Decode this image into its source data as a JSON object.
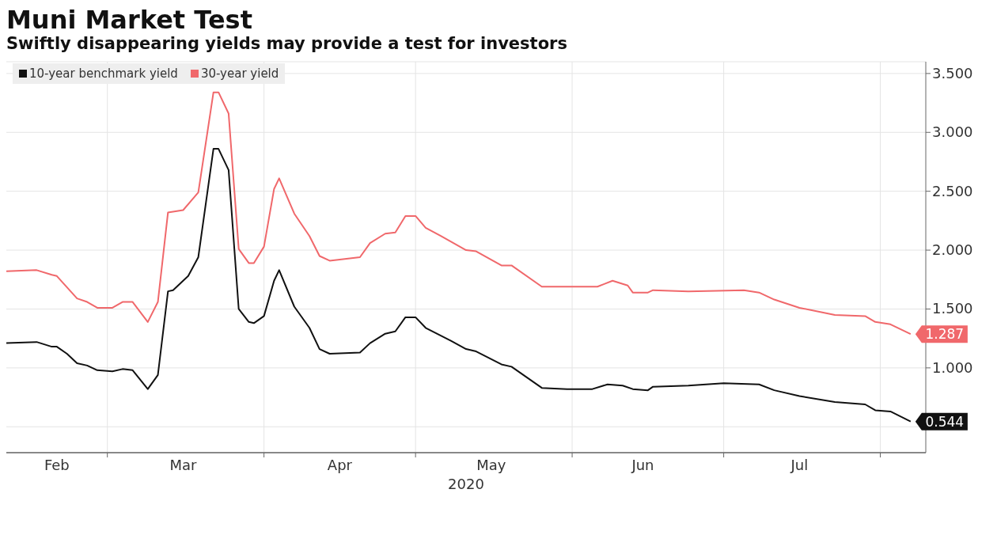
{
  "chart_data": {
    "type": "line",
    "title": "Muni Market Test",
    "subtitle": "Swiftly disappearing yields may provide a test for investors",
    "xlabel": "2020",
    "xlim": [
      "2020-02-10",
      "2020-08-10"
    ],
    "xticks": [
      {
        "value": "2020-02-20",
        "label": "Feb"
      },
      {
        "value": "2020-03-01",
        "label": null
      },
      {
        "value": "2020-03-16",
        "label": "Mar"
      },
      {
        "value": "2020-04-01",
        "label": null
      },
      {
        "value": "2020-04-16",
        "label": "Apr"
      },
      {
        "value": "2020-05-01",
        "label": null
      },
      {
        "value": "2020-05-16",
        "label": "May"
      },
      {
        "value": "2020-06-01",
        "label": null
      },
      {
        "value": "2020-06-15",
        "label": "Jun"
      },
      {
        "value": "2020-07-01",
        "label": null
      },
      {
        "value": "2020-07-16",
        "label": "Jul"
      },
      {
        "value": "2020-08-01",
        "label": null
      }
    ],
    "ylim": [
      0.28,
      3.6
    ],
    "yticks": [
      {
        "value": 0.5,
        "label": null
      },
      {
        "value": 1,
        "label": "1.000"
      },
      {
        "value": 1.5,
        "label": "1.500"
      },
      {
        "value": 2,
        "label": "2.000"
      },
      {
        "value": 2.5,
        "label": "2.500"
      },
      {
        "value": 3,
        "label": "3.000"
      },
      {
        "value": 3.5,
        "label": "3.500"
      }
    ],
    "grid": true,
    "legend": "top left",
    "series": [
      {
        "name": "10-year benchmark yield",
        "color": "#111111",
        "x": [
          "2020-02-10",
          "2020-02-16",
          "2020-02-19",
          "2020-02-20",
          "2020-02-22",
          "2020-02-24",
          "2020-02-26",
          "2020-02-28",
          "2020-03-02",
          "2020-03-04",
          "2020-03-06",
          "2020-03-09",
          "2020-03-11",
          "2020-03-13",
          "2020-03-14",
          "2020-03-17",
          "2020-03-19",
          "2020-03-22",
          "2020-03-23",
          "2020-03-25",
          "2020-03-27",
          "2020-03-29",
          "2020-03-30",
          "2020-04-01",
          "2020-04-03",
          "2020-04-04",
          "2020-04-07",
          "2020-04-10",
          "2020-04-12",
          "2020-04-14",
          "2020-04-20",
          "2020-04-22",
          "2020-04-25",
          "2020-04-27",
          "2020-04-29",
          "2020-05-01",
          "2020-05-03",
          "2020-05-08",
          "2020-05-11",
          "2020-05-13",
          "2020-05-18",
          "2020-05-20",
          "2020-05-26",
          "2020-05-31",
          "2020-06-05",
          "2020-06-08",
          "2020-06-11",
          "2020-06-13",
          "2020-06-16",
          "2020-06-17",
          "2020-06-24",
          "2020-07-01",
          "2020-07-08",
          "2020-07-11",
          "2020-07-16",
          "2020-07-23",
          "2020-07-29",
          "2020-07-31",
          "2020-08-03",
          "2020-08-07"
        ],
        "values": [
          1.21,
          1.22,
          1.18,
          1.18,
          1.12,
          1.04,
          1.02,
          0.98,
          0.97,
          0.99,
          0.98,
          0.82,
          0.94,
          1.65,
          1.66,
          1.78,
          1.94,
          2.86,
          2.86,
          2.68,
          1.5,
          1.39,
          1.38,
          1.44,
          1.74,
          1.83,
          1.52,
          1.34,
          1.16,
          1.12,
          1.13,
          1.21,
          1.29,
          1.31,
          1.43,
          1.43,
          1.34,
          1.23,
          1.16,
          1.14,
          1.03,
          1.01,
          0.83,
          0.82,
          0.82,
          0.86,
          0.85,
          0.82,
          0.81,
          0.84,
          0.85,
          0.87,
          0.86,
          0.81,
          0.76,
          0.71,
          0.69,
          0.64,
          0.63,
          0.544
        ],
        "value_labels": [
          null,
          null,
          null,
          null,
          null,
          null,
          null,
          null,
          null,
          null,
          null,
          null,
          null,
          null,
          null,
          null,
          null,
          null,
          null,
          null,
          null,
          null,
          null,
          null,
          null,
          null,
          null,
          null,
          null,
          null,
          null,
          null,
          null,
          null,
          null,
          null,
          null,
          null,
          null,
          null,
          null,
          null,
          null,
          null,
          null,
          null,
          null,
          null,
          null,
          null,
          null,
          null,
          null,
          null,
          null,
          null,
          null,
          null,
          null,
          "0.544"
        ]
      },
      {
        "name": "30-year yield",
        "color": "#f0686b",
        "x": [
          "2020-02-10",
          "2020-02-16",
          "2020-02-19",
          "2020-02-20",
          "2020-02-24",
          "2020-02-26",
          "2020-02-28",
          "2020-03-02",
          "2020-03-04",
          "2020-03-06",
          "2020-03-09",
          "2020-03-11",
          "2020-03-13",
          "2020-03-16",
          "2020-03-19",
          "2020-03-22",
          "2020-03-23",
          "2020-03-25",
          "2020-03-27",
          "2020-03-29",
          "2020-03-30",
          "2020-04-01",
          "2020-04-03",
          "2020-04-04",
          "2020-04-07",
          "2020-04-10",
          "2020-04-12",
          "2020-04-14",
          "2020-04-20",
          "2020-04-22",
          "2020-04-25",
          "2020-04-27",
          "2020-04-29",
          "2020-05-01",
          "2020-05-03",
          "2020-05-06",
          "2020-05-11",
          "2020-05-13",
          "2020-05-18",
          "2020-05-20",
          "2020-05-26",
          "2020-05-31",
          "2020-06-06",
          "2020-06-09",
          "2020-06-12",
          "2020-06-13",
          "2020-06-16",
          "2020-06-17",
          "2020-06-24",
          "2020-07-05",
          "2020-07-08",
          "2020-07-11",
          "2020-07-16",
          "2020-07-23",
          "2020-07-29",
          "2020-07-31",
          "2020-08-03",
          "2020-08-07"
        ],
        "values": [
          1.82,
          1.83,
          1.79,
          1.78,
          1.59,
          1.56,
          1.51,
          1.51,
          1.56,
          1.56,
          1.39,
          1.56,
          2.32,
          2.34,
          2.49,
          3.34,
          3.34,
          3.16,
          2.01,
          1.89,
          1.89,
          2.03,
          2.52,
          2.61,
          2.31,
          2.12,
          1.95,
          1.91,
          1.94,
          2.06,
          2.14,
          2.15,
          2.29,
          2.29,
          2.19,
          2.12,
          2.0,
          1.99,
          1.87,
          1.87,
          1.69,
          1.69,
          1.69,
          1.74,
          1.7,
          1.64,
          1.64,
          1.66,
          1.65,
          1.66,
          1.64,
          1.58,
          1.51,
          1.45,
          1.44,
          1.39,
          1.37,
          1.287
        ],
        "value_labels": [
          null,
          null,
          null,
          null,
          null,
          null,
          null,
          null,
          null,
          null,
          null,
          null,
          null,
          null,
          null,
          null,
          null,
          null,
          null,
          null,
          null,
          null,
          null,
          null,
          null,
          null,
          null,
          null,
          null,
          null,
          null,
          null,
          null,
          null,
          null,
          null,
          null,
          null,
          null,
          null,
          null,
          null,
          null,
          null,
          null,
          null,
          null,
          null,
          null,
          null,
          null,
          null,
          null,
          null,
          null,
          null,
          null,
          "1.287"
        ]
      }
    ]
  }
}
